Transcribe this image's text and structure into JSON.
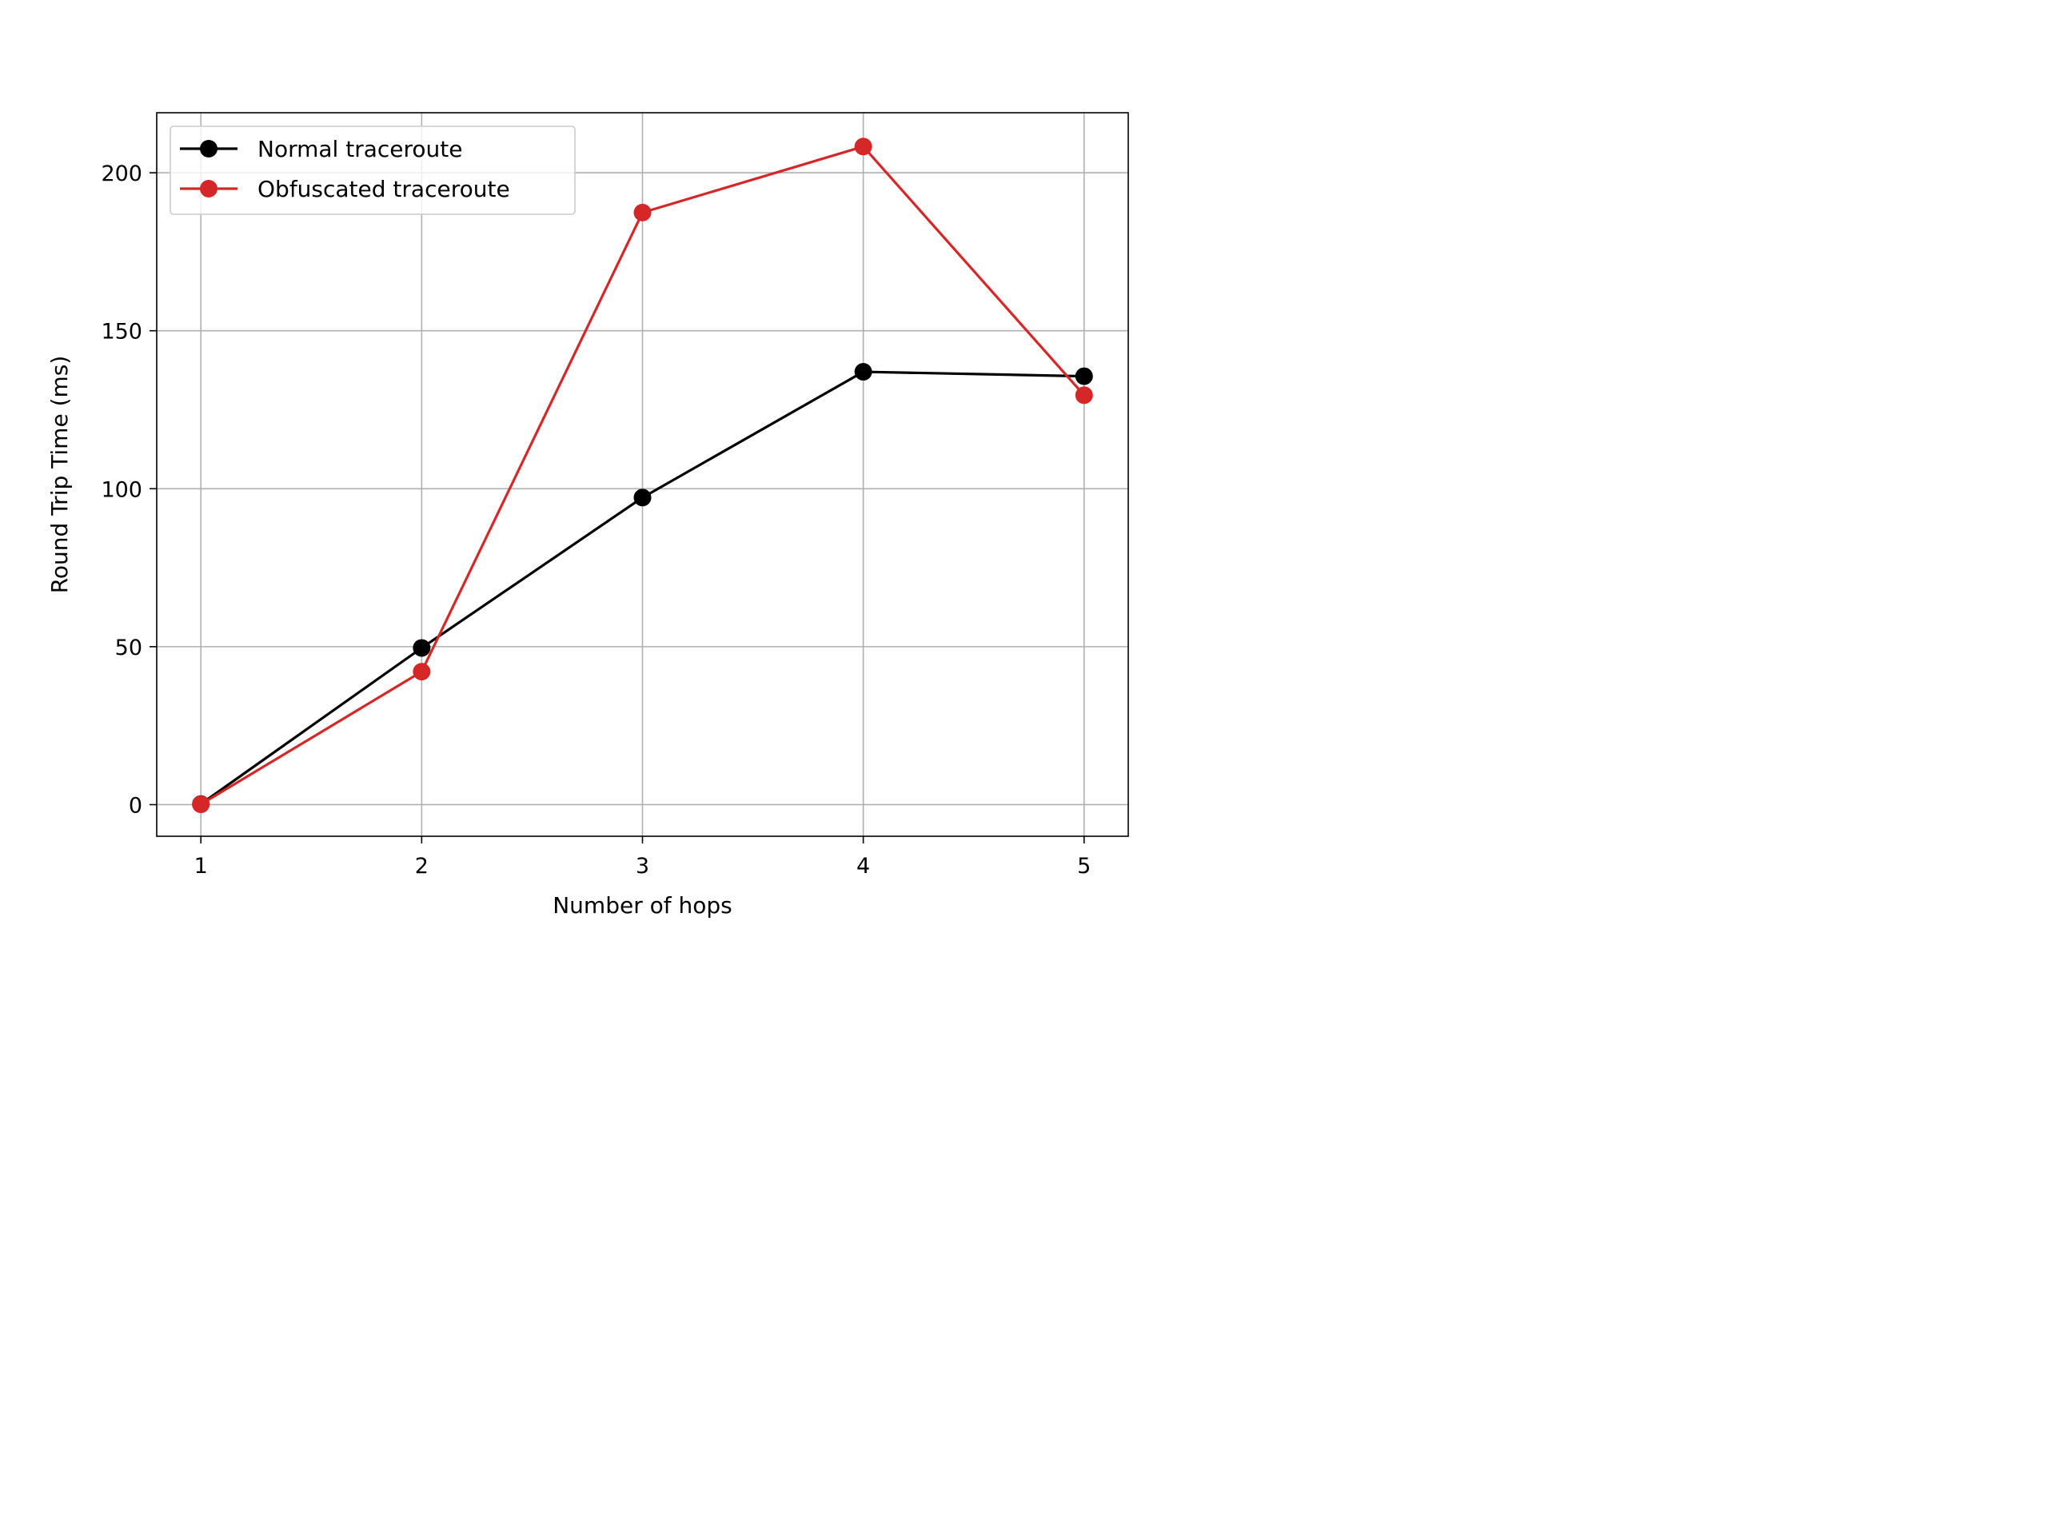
{
  "chart_data": {
    "type": "line",
    "title": "",
    "xlabel": "Number of hops",
    "ylabel": "Round Trip Time (ms)",
    "x": [
      1,
      2,
      3,
      4,
      5
    ],
    "xlim": [
      0.8,
      5.2
    ],
    "ylim": [
      -10,
      219
    ],
    "xticks": [
      "1",
      "2",
      "3",
      "4",
      "5"
    ],
    "yticks": [
      "0",
      "50",
      "100",
      "150",
      "200"
    ],
    "grid": true,
    "legend_position": "upper-left",
    "series": [
      {
        "name": "Normal traceroute",
        "color": "#000000",
        "marker": "circle",
        "values": [
          0.2,
          49.6,
          97.2,
          137.0,
          135.6
        ]
      },
      {
        "name": "Obfuscated traceroute",
        "color": "#d62728",
        "marker": "circle",
        "values": [
          0.1,
          42.1,
          187.4,
          208.3,
          129.6
        ]
      }
    ]
  }
}
